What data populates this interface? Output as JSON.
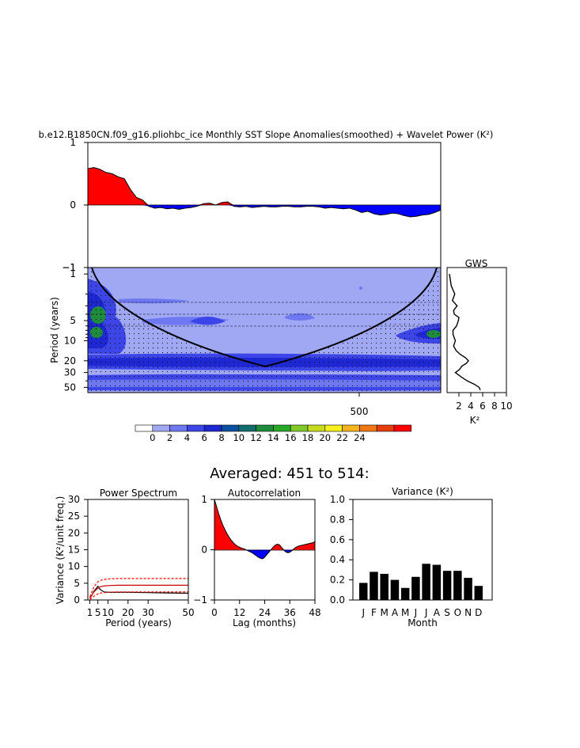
{
  "figure": {
    "title": "b.e12.B1850CN.f09_g16.pliohbc_ice Monthly SST Slope Anomalies(smoothed) + Wavelet Power (K²)",
    "subtitle": "Averaged: 451 to 514:"
  },
  "colors": {
    "positive": "#ff0000",
    "negative": "#0000ff",
    "bar": "#000000",
    "colorbar": [
      "#ffffff",
      "#a0a8f4",
      "#6e78f0",
      "#3c46e8",
      "#1e28d2",
      "#0a50a0",
      "#126e6e",
      "#1e8c3c",
      "#28aa28",
      "#82c828",
      "#c8dc1e",
      "#f5f01e",
      "#f5b41e",
      "#f07814",
      "#e83c0a",
      "#ff0000"
    ]
  },
  "chart_data": [
    {
      "id": "timeseries",
      "type": "area",
      "title": "",
      "ylabel": "",
      "ylim": [
        -1,
        1
      ],
      "yticks": [
        "1",
        "0",
        "−1"
      ],
      "xlim": [
        0,
        580
      ],
      "x": [
        0,
        10,
        20,
        30,
        40,
        50,
        60,
        70,
        80,
        90,
        100,
        110,
        120,
        130,
        140,
        150,
        160,
        170,
        180,
        190,
        200,
        210,
        220,
        230,
        240,
        250,
        260,
        270,
        280,
        290,
        300,
        310,
        320,
        330,
        340,
        350,
        360,
        370,
        380,
        390,
        400,
        410,
        420,
        430,
        440,
        450,
        460,
        470,
        480,
        490,
        500,
        510,
        520,
        530,
        540,
        550,
        560,
        570,
        580
      ],
      "values": [
        0.58,
        0.6,
        0.57,
        0.52,
        0.5,
        0.45,
        0.42,
        0.25,
        0.12,
        0.08,
        -0.02,
        -0.05,
        -0.04,
        -0.06,
        -0.05,
        -0.07,
        -0.05,
        -0.04,
        -0.02,
        0.02,
        0.03,
        0.0,
        0.04,
        0.05,
        -0.02,
        -0.03,
        -0.02,
        -0.04,
        -0.03,
        -0.02,
        -0.03,
        -0.03,
        -0.02,
        -0.02,
        -0.03,
        -0.03,
        -0.02,
        -0.02,
        -0.03,
        -0.05,
        -0.04,
        -0.05,
        -0.06,
        -0.05,
        -0.08,
        -0.12,
        -0.1,
        -0.14,
        -0.16,
        -0.15,
        -0.13,
        -0.14,
        -0.17,
        -0.19,
        -0.18,
        -0.16,
        -0.15,
        -0.12,
        -0.08
      ]
    },
    {
      "id": "wavelet",
      "type": "heatmap",
      "title": "",
      "ylabel": "Period (years)",
      "yticks": [
        "1",
        "5",
        "10",
        "20",
        "30",
        "50"
      ],
      "xticks": [
        "500"
      ],
      "colorbar_labels": [
        "0",
        "2",
        "4",
        "6",
        "8",
        "10",
        "12",
        "14",
        "16",
        "18",
        "20",
        "22",
        "24"
      ],
      "note_cone": true
    },
    {
      "id": "gws",
      "type": "line",
      "title": "GWS",
      "xlabel": "K²",
      "xticks": [
        "2",
        "4",
        "6",
        "8",
        "10"
      ],
      "xlim": [
        0,
        10
      ],
      "period": [
        1,
        1.5,
        2,
        2.5,
        3,
        3.5,
        4,
        4.5,
        5,
        6,
        7,
        8,
        9,
        10,
        12,
        14,
        16,
        18,
        20,
        22,
        24,
        27,
        30,
        35,
        40,
        45,
        50,
        55
      ],
      "power": [
        0.4,
        0.7,
        1.3,
        0.9,
        1.7,
        1.1,
        1.2,
        2.0,
        1.9,
        1.6,
        1.0,
        1.0,
        1.2,
        1.4,
        1.1,
        1.5,
        2.2,
        3.1,
        3.6,
        3.2,
        2.5,
        2.1,
        1.4,
        2.4,
        3.4,
        4.6,
        5.4,
        5.6
      ]
    },
    {
      "id": "power_spectrum",
      "type": "line",
      "title": "Power Spectrum",
      "xlabel": "Period (years)",
      "ylabel": "Variance (K²/unit freq.)",
      "xlim": [
        0,
        50
      ],
      "ylim": [
        0,
        30
      ],
      "xticks": [
        "1",
        "5",
        "10",
        "20",
        "30",
        "50"
      ],
      "yticks": [
        "0",
        "5",
        "10",
        "15",
        "20",
        "25",
        "30"
      ],
      "series": [
        {
          "x": [
            1,
            2,
            3,
            4,
            5,
            6,
            8,
            10,
            15,
            20,
            30,
            40,
            50
          ],
          "values": [
            0.6,
            1.4,
            2.6,
            3.3,
            4.1,
            3.2,
            2.4,
            2.3,
            2.3,
            2.3,
            2.2,
            2.1,
            2.0
          ],
          "style": "solid",
          "color": "#000000"
        },
        {
          "x": [
            1,
            2,
            3,
            4,
            5,
            6,
            8,
            10,
            15,
            20,
            30,
            40,
            50
          ],
          "values": [
            0.5,
            1.4,
            2.4,
            3.0,
            3.5,
            3.9,
            4.2,
            4.3,
            4.4,
            4.4,
            4.4,
            4.4,
            4.4
          ],
          "style": "solid",
          "color": "#cc0000"
        },
        {
          "x": [
            1,
            2,
            3,
            4,
            5,
            6,
            8,
            10,
            15,
            20,
            30,
            40,
            50
          ],
          "values": [
            1.0,
            2.4,
            3.8,
            4.7,
            5.4,
            5.8,
            6.1,
            6.3,
            6.4,
            6.4,
            6.4,
            6.4,
            6.4
          ],
          "style": "dashed",
          "color": "#ff0000"
        },
        {
          "x": [
            1,
            2,
            3,
            4,
            5,
            6,
            8,
            10,
            15,
            20,
            30,
            40,
            50
          ],
          "values": [
            0.2,
            0.6,
            1.1,
            1.5,
            1.8,
            2.0,
            2.2,
            2.3,
            2.4,
            2.4,
            2.4,
            2.4,
            2.4
          ],
          "style": "dashed",
          "color": "#ff0000"
        }
      ]
    },
    {
      "id": "autocorrelation",
      "type": "area",
      "title": "Autocorrelation",
      "xlabel": "Lag (months)",
      "xlim": [
        0,
        48
      ],
      "ylim": [
        -1,
        1
      ],
      "xticks": [
        "0",
        "12",
        "24",
        "36",
        "48"
      ],
      "yticks": [
        "1",
        "0",
        "−1"
      ],
      "x": [
        0,
        1,
        2,
        3,
        4,
        5,
        6,
        7,
        8,
        9,
        10,
        11,
        12,
        13,
        14,
        15,
        16,
        17,
        18,
        19,
        20,
        21,
        22,
        23,
        24,
        25,
        26,
        27,
        28,
        29,
        30,
        31,
        32,
        33,
        34,
        35,
        36,
        37,
        38,
        39,
        40,
        41,
        42,
        43,
        44,
        45,
        46,
        47,
        48
      ],
      "values": [
        1.0,
        0.86,
        0.72,
        0.6,
        0.49,
        0.4,
        0.32,
        0.25,
        0.19,
        0.14,
        0.1,
        0.07,
        0.05,
        0.03,
        0.02,
        0.0,
        -0.02,
        -0.04,
        -0.06,
        -0.09,
        -0.12,
        -0.15,
        -0.17,
        -0.18,
        -0.15,
        -0.1,
        -0.05,
        0.0,
        0.05,
        0.09,
        0.11,
        0.1,
        0.05,
        0.0,
        -0.04,
        -0.06,
        -0.05,
        -0.02,
        0.02,
        0.05,
        0.07,
        0.08,
        0.09,
        0.1,
        0.11,
        0.12,
        0.13,
        0.14,
        0.16
      ]
    },
    {
      "id": "variance",
      "type": "bar",
      "title": "Variance (K²)",
      "xlabel": "Month",
      "ylim": [
        0,
        1
      ],
      "yticks": [
        "0.0",
        "0.2",
        "0.4",
        "0.6",
        "0.8",
        "1.0"
      ],
      "categories": [
        "J",
        "F",
        "M",
        "A",
        "M",
        "J",
        "J",
        "A",
        "S",
        "O",
        "N",
        "D"
      ],
      "values": [
        0.17,
        0.28,
        0.26,
        0.2,
        0.12,
        0.23,
        0.36,
        0.35,
        0.29,
        0.29,
        0.22,
        0.14
      ]
    }
  ]
}
